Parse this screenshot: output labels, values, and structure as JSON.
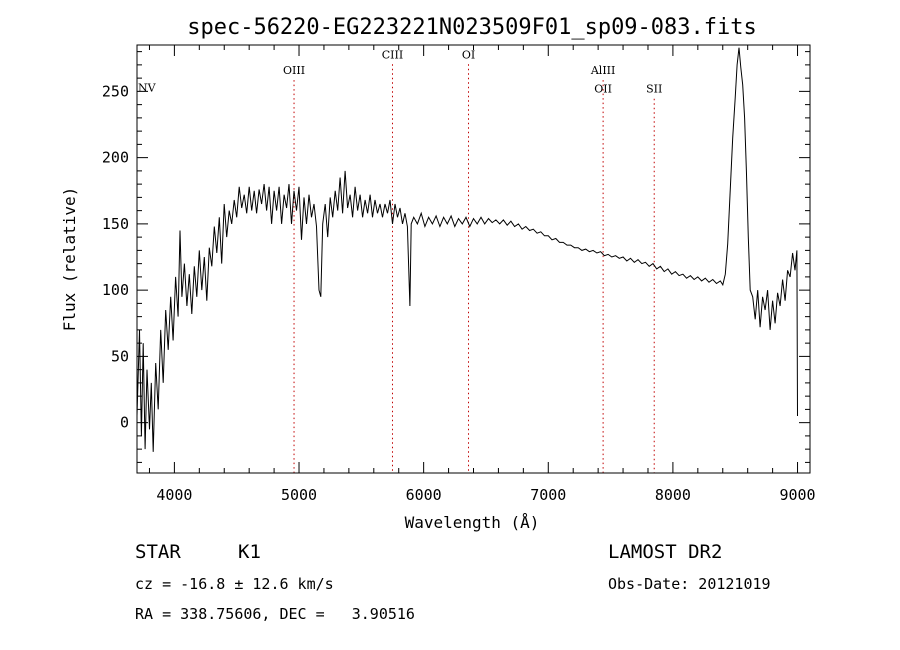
{
  "chart_data": {
    "type": "line",
    "title": "spec-56220-EG223221N023509F01_sp09-083.fits",
    "xlabel": "Wavelength (Å)",
    "ylabel": "Flux (relative)",
    "xlim": [
      3700,
      9100
    ],
    "ylim": [
      -38,
      285
    ],
    "xticks": [
      4000,
      5000,
      6000,
      7000,
      8000,
      9000
    ],
    "yticks": [
      0,
      50,
      100,
      150,
      200,
      250
    ],
    "grid": false,
    "line_color": "#000000",
    "marker_color": "#c00000",
    "spectral_lines": [
      {
        "label": "NV",
        "x": 3700,
        "label_y": 250
      },
      {
        "label": "OIII",
        "x": 4960,
        "label_y": 263
      },
      {
        "label": "CIII",
        "x": 5750,
        "label_y": 275
      },
      {
        "label": "OI",
        "x": 6360,
        "label_y": 275
      },
      {
        "label": "AlIII",
        "x": 7440,
        "label_y": 263
      },
      {
        "label": "OII",
        "x": 7440,
        "label_y": 249
      },
      {
        "label": "SII",
        "x": 7850,
        "label_y": 249
      }
    ],
    "series": [
      {
        "values": [
          [
            3700,
            5
          ],
          [
            3720,
            70
          ],
          [
            3735,
            -10
          ],
          [
            3750,
            60
          ],
          [
            3765,
            -20
          ],
          [
            3780,
            40
          ],
          [
            3800,
            -5
          ],
          [
            3815,
            30
          ],
          [
            3830,
            -22
          ],
          [
            3850,
            45
          ],
          [
            3870,
            10
          ],
          [
            3890,
            70
          ],
          [
            3910,
            30
          ],
          [
            3930,
            85
          ],
          [
            3950,
            55
          ],
          [
            3970,
            95
          ],
          [
            3990,
            62
          ],
          [
            4010,
            110
          ],
          [
            4030,
            80
          ],
          [
            4045,
            145
          ],
          [
            4060,
            95
          ],
          [
            4080,
            120
          ],
          [
            4100,
            88
          ],
          [
            4120,
            112
          ],
          [
            4140,
            82
          ],
          [
            4160,
            118
          ],
          [
            4180,
            95
          ],
          [
            4200,
            130
          ],
          [
            4220,
            100
          ],
          [
            4240,
            125
          ],
          [
            4260,
            92
          ],
          [
            4280,
            132
          ],
          [
            4300,
            118
          ],
          [
            4320,
            148
          ],
          [
            4340,
            128
          ],
          [
            4360,
            155
          ],
          [
            4380,
            120
          ],
          [
            4400,
            165
          ],
          [
            4420,
            140
          ],
          [
            4440,
            160
          ],
          [
            4460,
            150
          ],
          [
            4480,
            168
          ],
          [
            4500,
            155
          ],
          [
            4520,
            178
          ],
          [
            4540,
            162
          ],
          [
            4560,
            172
          ],
          [
            4580,
            158
          ],
          [
            4600,
            178
          ],
          [
            4620,
            160
          ],
          [
            4640,
            175
          ],
          [
            4660,
            158
          ],
          [
            4680,
            176
          ],
          [
            4700,
            165
          ],
          [
            4720,
            180
          ],
          [
            4740,
            160
          ],
          [
            4760,
            178
          ],
          [
            4780,
            150
          ],
          [
            4800,
            175
          ],
          [
            4820,
            160
          ],
          [
            4840,
            178
          ],
          [
            4860,
            150
          ],
          [
            4880,
            172
          ],
          [
            4900,
            162
          ],
          [
            4920,
            180
          ],
          [
            4940,
            150
          ],
          [
            4960,
            175
          ],
          [
            4980,
            160
          ],
          [
            5000,
            178
          ],
          [
            5020,
            138
          ],
          [
            5040,
            170
          ],
          [
            5060,
            150
          ],
          [
            5080,
            172
          ],
          [
            5100,
            155
          ],
          [
            5120,
            165
          ],
          [
            5140,
            148
          ],
          [
            5160,
            100
          ],
          [
            5175,
            95
          ],
          [
            5190,
            150
          ],
          [
            5210,
            165
          ],
          [
            5230,
            140
          ],
          [
            5250,
            170
          ],
          [
            5270,
            155
          ],
          [
            5290,
            175
          ],
          [
            5310,
            160
          ],
          [
            5330,
            185
          ],
          [
            5350,
            158
          ],
          [
            5370,
            190
          ],
          [
            5390,
            162
          ],
          [
            5410,
            172
          ],
          [
            5430,
            155
          ],
          [
            5450,
            178
          ],
          [
            5470,
            160
          ],
          [
            5490,
            172
          ],
          [
            5510,
            155
          ],
          [
            5530,
            168
          ],
          [
            5550,
            158
          ],
          [
            5570,
            172
          ],
          [
            5590,
            155
          ],
          [
            5610,
            168
          ],
          [
            5630,
            158
          ],
          [
            5650,
            165
          ],
          [
            5670,
            155
          ],
          [
            5690,
            165
          ],
          [
            5710,
            158
          ],
          [
            5730,
            168
          ],
          [
            5750,
            150
          ],
          [
            5770,
            165
          ],
          [
            5790,
            155
          ],
          [
            5810,
            162
          ],
          [
            5830,
            150
          ],
          [
            5850,
            158
          ],
          [
            5870,
            148
          ],
          [
            5890,
            88
          ],
          [
            5900,
            150
          ],
          [
            5920,
            155
          ],
          [
            5950,
            150
          ],
          [
            5980,
            158
          ],
          [
            6010,
            148
          ],
          [
            6040,
            155
          ],
          [
            6070,
            150
          ],
          [
            6100,
            156
          ],
          [
            6130,
            148
          ],
          [
            6160,
            155
          ],
          [
            6190,
            150
          ],
          [
            6220,
            156
          ],
          [
            6250,
            148
          ],
          [
            6280,
            154
          ],
          [
            6310,
            150
          ],
          [
            6340,
            155
          ],
          [
            6370,
            148
          ],
          [
            6400,
            154
          ],
          [
            6430,
            150
          ],
          [
            6460,
            155
          ],
          [
            6490,
            150
          ],
          [
            6520,
            154
          ],
          [
            6550,
            151
          ],
          [
            6580,
            153
          ],
          [
            6610,
            150
          ],
          [
            6640,
            153
          ],
          [
            6670,
            149
          ],
          [
            6700,
            152
          ],
          [
            6730,
            148
          ],
          [
            6760,
            150
          ],
          [
            6790,
            146
          ],
          [
            6820,
            148
          ],
          [
            6850,
            145
          ],
          [
            6880,
            146
          ],
          [
            6910,
            143
          ],
          [
            6940,
            144
          ],
          [
            6970,
            141
          ],
          [
            7000,
            141
          ],
          [
            7030,
            138
          ],
          [
            7060,
            139
          ],
          [
            7090,
            136
          ],
          [
            7120,
            136
          ],
          [
            7150,
            134
          ],
          [
            7180,
            134
          ],
          [
            7210,
            132
          ],
          [
            7240,
            132
          ],
          [
            7270,
            130
          ],
          [
            7300,
            131
          ],
          [
            7330,
            129
          ],
          [
            7360,
            130
          ],
          [
            7390,
            128
          ],
          [
            7420,
            129
          ],
          [
            7450,
            126
          ],
          [
            7480,
            127
          ],
          [
            7510,
            125
          ],
          [
            7540,
            126
          ],
          [
            7570,
            124
          ],
          [
            7600,
            125
          ],
          [
            7630,
            122
          ],
          [
            7660,
            124
          ],
          [
            7690,
            121
          ],
          [
            7720,
            123
          ],
          [
            7750,
            120
          ],
          [
            7780,
            121
          ],
          [
            7810,
            118
          ],
          [
            7840,
            120
          ],
          [
            7870,
            116
          ],
          [
            7900,
            118
          ],
          [
            7930,
            114
          ],
          [
            7960,
            116
          ],
          [
            7990,
            112
          ],
          [
            8020,
            114
          ],
          [
            8050,
            111
          ],
          [
            8080,
            112
          ],
          [
            8110,
            109
          ],
          [
            8140,
            111
          ],
          [
            8170,
            108
          ],
          [
            8200,
            110
          ],
          [
            8230,
            107
          ],
          [
            8260,
            109
          ],
          [
            8290,
            106
          ],
          [
            8320,
            108
          ],
          [
            8350,
            105
          ],
          [
            8380,
            107
          ],
          [
            8400,
            104
          ],
          [
            8420,
            112
          ],
          [
            8440,
            135
          ],
          [
            8460,
            175
          ],
          [
            8480,
            215
          ],
          [
            8500,
            245
          ],
          [
            8515,
            270
          ],
          [
            8530,
            283
          ],
          [
            8545,
            268
          ],
          [
            8560,
            255
          ],
          [
            8575,
            230
          ],
          [
            8590,
            190
          ],
          [
            8605,
            140
          ],
          [
            8620,
            100
          ],
          [
            8640,
            95
          ],
          [
            8660,
            78
          ],
          [
            8680,
            100
          ],
          [
            8700,
            72
          ],
          [
            8720,
            95
          ],
          [
            8740,
            85
          ],
          [
            8760,
            100
          ],
          [
            8780,
            70
          ],
          [
            8800,
            92
          ],
          [
            8820,
            75
          ],
          [
            8840,
            98
          ],
          [
            8860,
            88
          ],
          [
            8880,
            108
          ],
          [
            8900,
            92
          ],
          [
            8920,
            115
          ],
          [
            8940,
            110
          ],
          [
            8960,
            128
          ],
          [
            8980,
            115
          ],
          [
            8995,
            130
          ],
          [
            9000,
            5
          ]
        ]
      }
    ]
  },
  "info": {
    "class": "STAR",
    "subclass": "K1",
    "survey": "LAMOST DR2",
    "cz": "cz = -16.8 ± 12.6 km/s",
    "obs_date": "Obs-Date: 20121019",
    "coords": "RA = 338.75606, DEC =   3.90516"
  }
}
